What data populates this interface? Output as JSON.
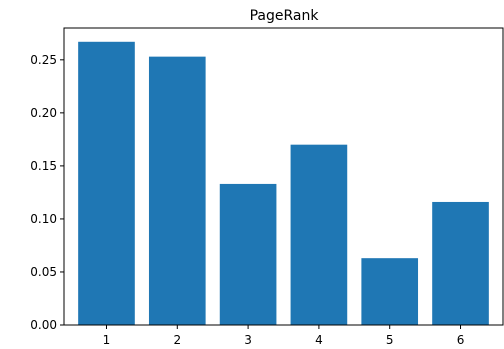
{
  "chart_data": {
    "type": "bar",
    "title": "PageRank",
    "xlabel": "",
    "ylabel": "",
    "categories": [
      "1",
      "2",
      "3",
      "4",
      "5",
      "6"
    ],
    "values": [
      0.267,
      0.253,
      0.133,
      0.17,
      0.063,
      0.116
    ],
    "ylim": [
      0,
      0.28
    ],
    "yticks": [
      "0.00",
      "0.05",
      "0.10",
      "0.15",
      "0.20",
      "0.25"
    ],
    "bar_color": "#1f77b4",
    "grid": false,
    "legend": "none"
  }
}
